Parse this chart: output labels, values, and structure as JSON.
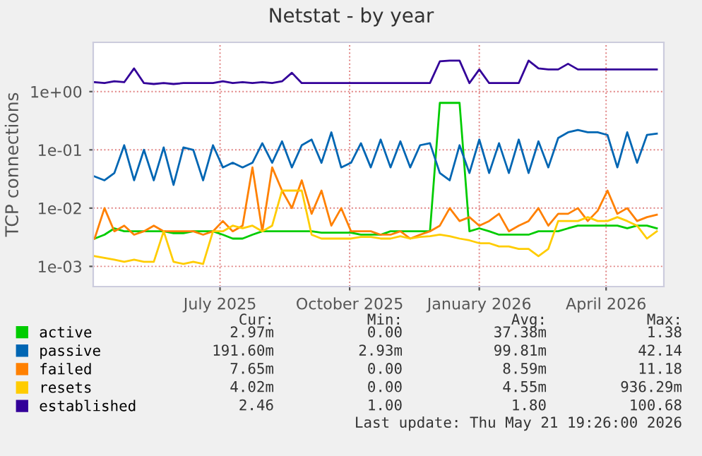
{
  "chart_data": {
    "type": "line",
    "title": "Netstat - by year",
    "ylabel": "TCP connections",
    "x": [
      "2025-04-03",
      "2025-04-10",
      "2025-04-17",
      "2025-04-24",
      "2025-05-01",
      "2025-05-08",
      "2025-05-15",
      "2025-05-22",
      "2025-05-29",
      "2025-06-05",
      "2025-06-12",
      "2025-06-19",
      "2025-06-26",
      "2025-07-03",
      "2025-07-10",
      "2025-07-17",
      "2025-07-24",
      "2025-07-31",
      "2025-08-07",
      "2025-08-14",
      "2025-08-21",
      "2025-08-28",
      "2025-09-04",
      "2025-09-11",
      "2025-09-18",
      "2025-09-25",
      "2025-10-02",
      "2025-10-09",
      "2025-10-16",
      "2025-10-23",
      "2025-10-30",
      "2025-11-06",
      "2025-11-13",
      "2025-11-20",
      "2025-11-27",
      "2025-12-04",
      "2025-12-11",
      "2025-12-18",
      "2025-12-25",
      "2026-01-01",
      "2026-01-08",
      "2026-01-15",
      "2026-01-22",
      "2026-01-29",
      "2026-02-05",
      "2026-02-12",
      "2026-02-19",
      "2026-02-26",
      "2026-03-05",
      "2026-03-12",
      "2026-03-19",
      "2026-03-26",
      "2026-04-02",
      "2026-04-09",
      "2026-04-16",
      "2026-04-23",
      "2026-04-30",
      "2026-05-07"
    ],
    "series": [
      {
        "name": "active",
        "color": "#00cc00",
        "values": [
          0.003,
          0.0035,
          0.0045,
          0.004,
          0.004,
          0.004,
          0.004,
          0.004,
          0.0037,
          0.0037,
          0.004,
          0.004,
          0.004,
          0.0035,
          0.003,
          0.003,
          0.0035,
          0.004,
          0.004,
          0.004,
          0.004,
          0.004,
          0.004,
          0.0038,
          0.0038,
          0.0038,
          0.0038,
          0.0035,
          0.0035,
          0.0035,
          0.004,
          0.004,
          0.004,
          0.004,
          0.004,
          0.64,
          0.64,
          0.64,
          0.004,
          0.0045,
          0.004,
          0.0035,
          0.0035,
          0.0035,
          0.0035,
          0.004,
          0.004,
          0.004,
          0.0045,
          0.005,
          0.005,
          0.005,
          0.005,
          0.005,
          0.0045,
          0.005,
          0.005,
          0.0045
        ]
      },
      {
        "name": "passive",
        "color": "#0066b3",
        "values": [
          0.035,
          0.03,
          0.04,
          0.12,
          0.03,
          0.1,
          0.03,
          0.11,
          0.025,
          0.11,
          0.1,
          0.03,
          0.12,
          0.05,
          0.06,
          0.05,
          0.06,
          0.13,
          0.06,
          0.14,
          0.05,
          0.12,
          0.15,
          0.06,
          0.2,
          0.05,
          0.06,
          0.13,
          0.05,
          0.15,
          0.05,
          0.14,
          0.05,
          0.12,
          0.13,
          0.04,
          0.03,
          0.12,
          0.04,
          0.15,
          0.04,
          0.13,
          0.04,
          0.15,
          0.04,
          0.14,
          0.05,
          0.16,
          0.2,
          0.22,
          0.2,
          0.2,
          0.18,
          0.05,
          0.2,
          0.06,
          0.18,
          0.19
        ]
      },
      {
        "name": "failed",
        "color": "#ff8000",
        "values": [
          0.003,
          0.01,
          0.004,
          0.005,
          0.0035,
          0.004,
          0.005,
          0.004,
          0.004,
          0.004,
          0.004,
          0.0035,
          0.004,
          0.006,
          0.004,
          0.005,
          0.05,
          0.004,
          0.05,
          0.02,
          0.01,
          0.03,
          0.008,
          0.02,
          0.005,
          0.01,
          0.004,
          0.004,
          0.004,
          0.0035,
          0.0035,
          0.004,
          0.003,
          0.0035,
          0.004,
          0.005,
          0.01,
          0.006,
          0.007,
          0.005,
          0.006,
          0.008,
          0.004,
          0.005,
          0.006,
          0.01,
          0.005,
          0.008,
          0.008,
          0.01,
          0.006,
          0.009,
          0.02,
          0.008,
          0.01,
          0.006,
          0.007,
          0.0077
        ]
      },
      {
        "name": "resets",
        "color": "#ffcc00",
        "values": [
          0.0015,
          0.0014,
          0.0013,
          0.0012,
          0.0013,
          0.0012,
          0.0012,
          0.004,
          0.0012,
          0.0011,
          0.0012,
          0.0011,
          0.004,
          0.004,
          0.005,
          0.0045,
          0.005,
          0.004,
          0.005,
          0.02,
          0.02,
          0.02,
          0.0035,
          0.003,
          0.003,
          0.003,
          0.003,
          0.0032,
          0.0032,
          0.003,
          0.003,
          0.0033,
          0.003,
          0.0032,
          0.0033,
          0.0035,
          0.0033,
          0.003,
          0.0028,
          0.0025,
          0.0025,
          0.0022,
          0.0022,
          0.002,
          0.002,
          0.0015,
          0.002,
          0.006,
          0.006,
          0.006,
          0.007,
          0.006,
          0.006,
          0.007,
          0.006,
          0.005,
          0.003,
          0.004
        ]
      },
      {
        "name": "established",
        "color": "#330099",
        "values": [
          1.45,
          1.4,
          1.5,
          1.45,
          2.5,
          1.4,
          1.35,
          1.4,
          1.35,
          1.4,
          1.4,
          1.4,
          1.4,
          1.5,
          1.4,
          1.45,
          1.4,
          1.45,
          1.4,
          1.5,
          2.1,
          1.4,
          1.4,
          1.4,
          1.4,
          1.4,
          1.4,
          1.4,
          1.4,
          1.4,
          1.4,
          1.4,
          1.4,
          1.4,
          1.4,
          3.3,
          3.4,
          3.4,
          1.4,
          2.4,
          1.4,
          1.4,
          1.4,
          1.4,
          3.4,
          2.5,
          2.4,
          2.4,
          3.0,
          2.4,
          2.4,
          2.4,
          2.4,
          2.4,
          2.4,
          2.4,
          2.4,
          2.4
        ]
      }
    ],
    "log": true,
    "xlim": [
      "2025-04-02",
      "2026-05-12"
    ],
    "xticks": [
      {
        "value": "2025-07-01",
        "label": "July 2025"
      },
      {
        "value": "2025-10-01",
        "label": "October 2025"
      },
      {
        "value": "2026-01-01",
        "label": "January 2026"
      },
      {
        "value": "2026-04-01",
        "label": "April 2026"
      }
    ],
    "ylim": [
      0.00045,
      7
    ],
    "yticks": [
      {
        "value": 0.001,
        "label": "1e-03"
      },
      {
        "value": 0.01,
        "label": "1e-02"
      },
      {
        "value": 0.1,
        "label": "1e-01"
      },
      {
        "value": 1,
        "label": "1e+00"
      }
    ],
    "grid": true,
    "legend": "bottom",
    "annotations": [
      "Cur:",
      "Min:",
      "Avg:",
      "Max:",
      "2.97m",
      "0.00",
      "37.38m",
      "1.38",
      "191.60m",
      "2.93m",
      "99.81m",
      "42.14",
      "7.65m",
      "0.00",
      "8.59m",
      "11.18",
      "4.02m",
      "0.00",
      "4.55m",
      "936.29m",
      "2.46",
      "1.00",
      "1.80",
      "100.68",
      "Last update: Thu May 21 19:26:00 2026"
    ]
  }
}
